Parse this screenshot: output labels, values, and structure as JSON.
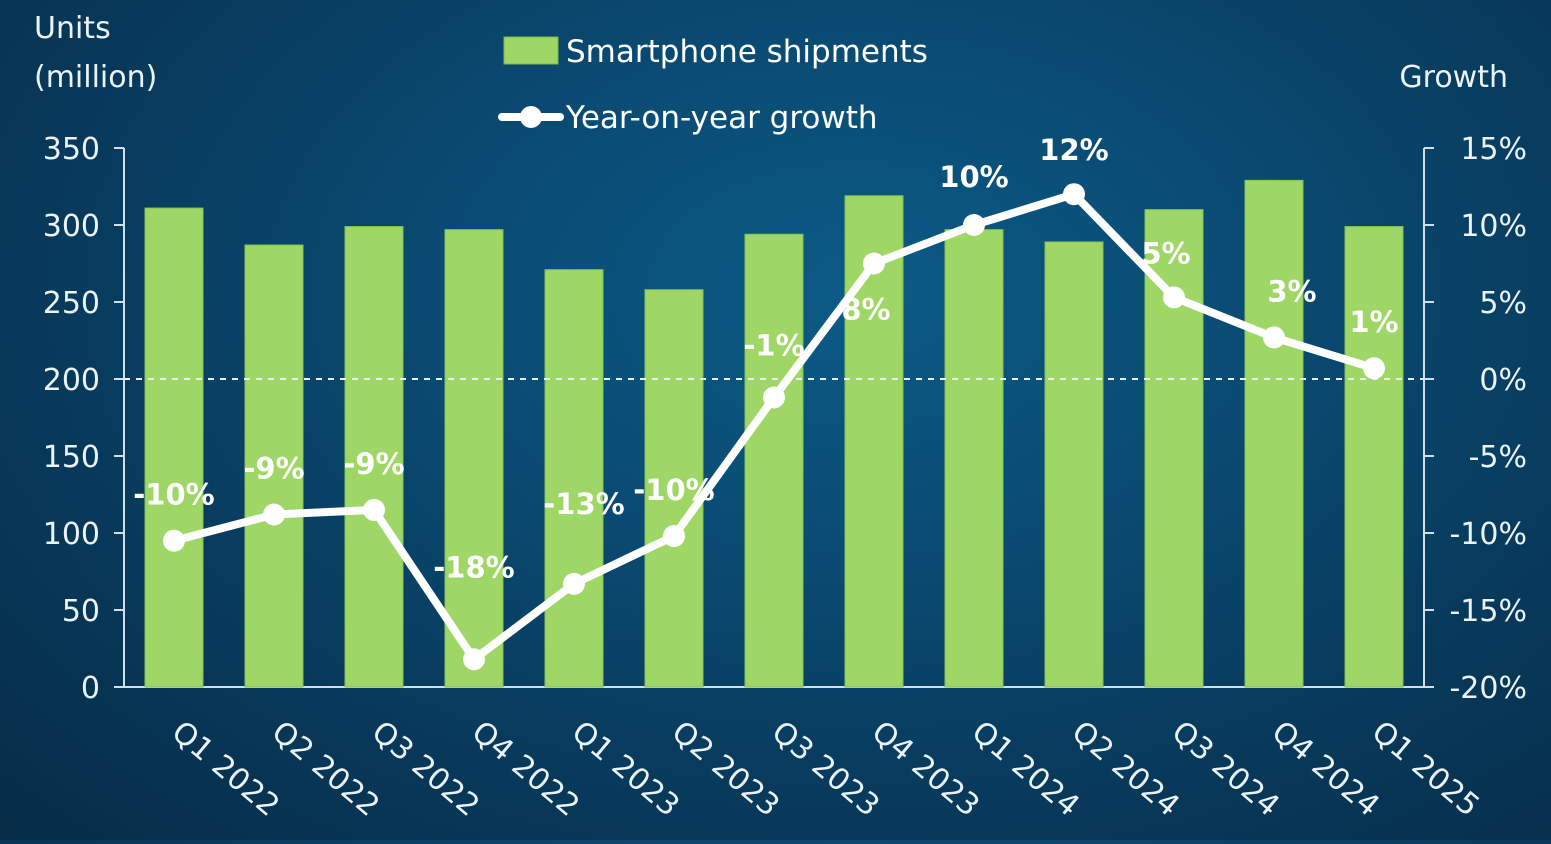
{
  "chart_data": {
    "type": "bar",
    "categories": [
      "Q1 2022",
      "Q2 2022",
      "Q3 2022",
      "Q4 2022",
      "Q1 2023",
      "Q2 2023",
      "Q3 2023",
      "Q4 2023",
      "Q1 2024",
      "Q2 2024",
      "Q3 2024",
      "Q4 2024",
      "Q1 2025"
    ],
    "series": [
      {
        "name": "Smartphone shipments",
        "type": "bar",
        "axis": "left",
        "color": "#9fd766",
        "values": [
          311,
          287,
          299,
          297,
          271,
          258,
          294,
          319,
          297,
          289,
          310,
          329,
          299
        ]
      },
      {
        "name": "Year-on-year growth",
        "type": "line",
        "axis": "right",
        "color": "#ffffff",
        "values": [
          -10.5,
          -8.8,
          -8.5,
          -18.2,
          -13.3,
          -10.2,
          -1.2,
          7.5,
          10,
          12,
          5.3,
          2.7,
          0.7
        ],
        "data_labels": [
          "-10%",
          "-9%",
          "-9%",
          "-18%",
          "-13%",
          "-10%",
          "-1%",
          "8%",
          "10%",
          "12%",
          "5%",
          "3%",
          "1%"
        ]
      }
    ],
    "ylabel_left": [
      "Units",
      "(million)"
    ],
    "ylabel_right": "Growth",
    "ylim_left": [
      0,
      350
    ],
    "yticks_left": [
      "0",
      "50",
      "100",
      "150",
      "200",
      "250",
      "300",
      "350"
    ],
    "ylim_right": [
      -20,
      15
    ],
    "yticks_right": [
      "-20%",
      "-15%",
      "-10%",
      "-5%",
      "0%",
      "5%",
      "10%",
      "15%"
    ],
    "reference_line": {
      "axis": "right",
      "value": 0,
      "style": "dashed"
    },
    "legend_position": "top-center",
    "grid": false
  }
}
